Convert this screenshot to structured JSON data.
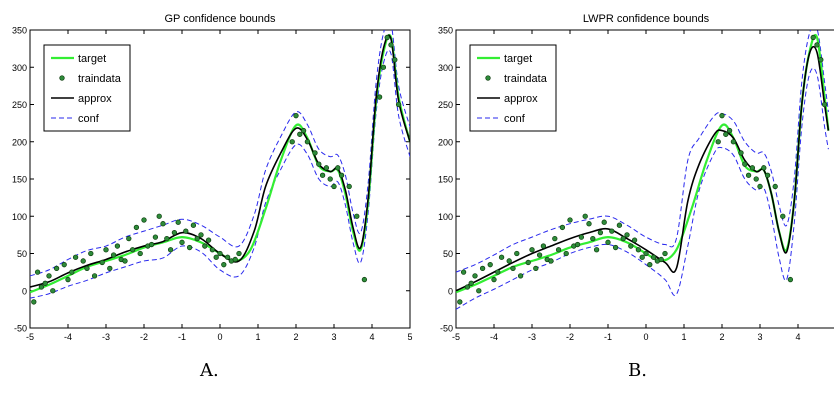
{
  "captions": [
    "A.",
    "B."
  ],
  "colors": {
    "target": "#33ee33",
    "traindata_fill": "#2e8b3a",
    "approx": "#000000",
    "conf": "#2a2aee"
  },
  "chart_data": [
    {
      "type": "line",
      "title": "GP confidence bounds",
      "xlim": [
        -5,
        5
      ],
      "ylim": [
        -50,
        350
      ],
      "xticks": [
        "-5",
        "-4",
        "-3",
        "-2",
        "-1",
        "0",
        "1",
        "2",
        "3",
        "4",
        "5"
      ],
      "yticks": [
        "-50",
        "0",
        "50",
        "100",
        "150",
        "200",
        "250",
        "300",
        "350"
      ],
      "legend": {
        "position": "top-left",
        "entries": [
          "target",
          "traindata",
          "approx",
          "conf"
        ]
      },
      "series": [
        {
          "name": "target",
          "style": "solid-green",
          "x": [
            -5,
            -4.5,
            -4,
            -3.5,
            -3,
            -2.5,
            -2,
            -1.5,
            -1,
            -0.5,
            0,
            0.4,
            0.8,
            1.2,
            1.6,
            2.0,
            2.3,
            2.6,
            2.9,
            3.1,
            3.3,
            3.5,
            3.7,
            3.9,
            4.1,
            4.3,
            4.5,
            4.7,
            5
          ],
          "y": [
            -2,
            8,
            20,
            32,
            40,
            48,
            58,
            65,
            72,
            65,
            50,
            40,
            55,
            110,
            175,
            222,
            205,
            168,
            160,
            162,
            130,
            80,
            55,
            120,
            250,
            320,
            340,
            260,
            200
          ]
        },
        {
          "name": "approx",
          "style": "solid-black",
          "x": [
            -5,
            -4.5,
            -4,
            -3.5,
            -3,
            -2.5,
            -2,
            -1.5,
            -1,
            -0.5,
            0,
            0.5,
            0.9,
            1.2,
            1.6,
            2.0,
            2.3,
            2.6,
            2.9,
            3.1,
            3.3,
            3.5,
            3.7,
            3.9,
            4.1,
            4.3,
            4.5,
            4.7,
            5
          ],
          "y": [
            5,
            12,
            24,
            34,
            42,
            52,
            60,
            66,
            78,
            70,
            50,
            40,
            80,
            140,
            185,
            218,
            203,
            170,
            160,
            164,
            135,
            85,
            58,
            125,
            255,
            325,
            338,
            255,
            200
          ]
        },
        {
          "name": "conf",
          "style": "dashed-blue",
          "x": [
            -5,
            -4.5,
            -4,
            -3.5,
            -3,
            -2.5,
            -2,
            -1.5,
            -1,
            -0.5,
            0,
            0.5,
            0.9,
            1.2,
            1.6,
            2.0,
            2.3,
            2.6,
            2.9,
            3.1,
            3.3,
            3.5,
            3.7,
            3.9,
            4.1,
            4.3,
            4.5,
            4.7,
            5
          ],
          "y": [
            20,
            28,
            42,
            54,
            60,
            72,
            80,
            88,
            96,
            88,
            72,
            60,
            102,
            162,
            207,
            240,
            223,
            190,
            180,
            182,
            155,
            105,
            78,
            145,
            275,
            345,
            358,
            275,
            220
          ]
        },
        {
          "name": "conf",
          "style": "dashed-blue",
          "x": [
            -5,
            -4.5,
            -4,
            -3.5,
            -3,
            -2.5,
            -2,
            -1.5,
            -1,
            -0.5,
            0,
            0.5,
            0.9,
            1.2,
            1.6,
            2.0,
            2.3,
            2.6,
            2.9,
            3.1,
            3.3,
            3.5,
            3.7,
            3.9,
            4.1,
            4.3,
            4.5,
            4.7,
            5
          ],
          "y": [
            -10,
            -4,
            6,
            14,
            24,
            32,
            40,
            44,
            60,
            52,
            28,
            20,
            58,
            118,
            163,
            196,
            183,
            150,
            140,
            146,
            115,
            65,
            38,
            105,
            235,
            305,
            318,
            235,
            180
          ]
        }
      ],
      "scatter": {
        "name": "traindata",
        "x": [
          -4.9,
          -4.8,
          -4.7,
          -4.6,
          -4.5,
          -4.4,
          -4.3,
          -4.1,
          -4.0,
          -3.9,
          -3.8,
          -3.6,
          -3.5,
          -3.4,
          -3.3,
          -3.1,
          -3.0,
          -2.9,
          -2.8,
          -2.7,
          -2.6,
          -2.5,
          -2.4,
          -2.3,
          -2.2,
          -2.1,
          -2.0,
          -1.9,
          -1.8,
          -1.7,
          -1.6,
          -1.5,
          -1.4,
          -1.3,
          -1.2,
          -1.1,
          -1.0,
          -0.9,
          -0.8,
          -0.7,
          -0.6,
          -0.5,
          -0.4,
          -0.3,
          -0.2,
          -0.1,
          0.0,
          0.1,
          0.2,
          0.3,
          0.4,
          0.5,
          1.9,
          2.0,
          2.1,
          2.2,
          2.3,
          2.5,
          2.6,
          2.7,
          2.8,
          2.9,
          3.0,
          3.1,
          3.2,
          3.4,
          3.6,
          3.8,
          4.2,
          4.3,
          4.4,
          4.5,
          4.6,
          4.7
        ],
        "y": [
          -15,
          25,
          5,
          10,
          20,
          0,
          30,
          35,
          15,
          25,
          45,
          40,
          30,
          50,
          20,
          38,
          55,
          30,
          48,
          60,
          42,
          40,
          70,
          55,
          85,
          50,
          95,
          60,
          62,
          72,
          100,
          90,
          70,
          55,
          78,
          92,
          65,
          80,
          58,
          88,
          70,
          75,
          60,
          68,
          55,
          45,
          50,
          35,
          45,
          40,
          42,
          50,
          200,
          235,
          210,
          215,
          200,
          185,
          170,
          155,
          165,
          150,
          140,
          165,
          155,
          140,
          100,
          15,
          260,
          300,
          340,
          330,
          310,
          250
        ]
      }
    },
    {
      "type": "line",
      "title": "LWPR confidence bounds",
      "xlim": [
        -5,
        5
      ],
      "ylim": [
        -50,
        350
      ],
      "xticks": [
        "-5",
        "-4",
        "-3",
        "-2",
        "-1",
        "0",
        "1",
        "2",
        "3",
        "4"
      ],
      "yticks": [
        "-50",
        "0",
        "50",
        "100",
        "150",
        "200",
        "250",
        "300",
        "350"
      ],
      "legend": {
        "position": "top-left",
        "entries": [
          "target",
          "traindata",
          "approx",
          "conf"
        ]
      },
      "series": [
        {
          "name": "target",
          "style": "solid-green",
          "x": [
            -5,
            -4.5,
            -4,
            -3.5,
            -3,
            -2.5,
            -2,
            -1.5,
            -1,
            -0.5,
            0,
            0.4,
            0.8,
            1.2,
            1.6,
            2.0,
            2.3,
            2.6,
            2.9,
            3.1,
            3.3,
            3.5,
            3.7,
            3.9,
            4.1,
            4.3,
            4.5,
            4.7,
            4.8
          ],
          "y": [
            -2,
            8,
            20,
            32,
            40,
            48,
            58,
            65,
            72,
            65,
            50,
            40,
            55,
            110,
            175,
            222,
            205,
            168,
            160,
            162,
            130,
            80,
            55,
            120,
            250,
            320,
            340,
            260,
            215
          ]
        },
        {
          "name": "approx",
          "style": "solid-black",
          "x": [
            -5,
            -4.5,
            -4,
            -3.5,
            -3,
            -2.5,
            -2,
            -1.5,
            -1,
            -0.5,
            0,
            0.5,
            0.8,
            1.1,
            1.4,
            1.8,
            2.0,
            2.3,
            2.6,
            2.9,
            3.1,
            3.3,
            3.5,
            3.7,
            3.9,
            4.1,
            4.3,
            4.5,
            4.7,
            4.8
          ],
          "y": [
            0,
            12,
            25,
            38,
            50,
            60,
            70,
            78,
            83,
            70,
            55,
            38,
            30,
            120,
            170,
            210,
            215,
            205,
            175,
            160,
            162,
            130,
            80,
            52,
            120,
            250,
            318,
            320,
            250,
            215
          ]
        },
        {
          "name": "conf",
          "style": "dashed-blue",
          "x": [
            -5,
            -4.5,
            -4,
            -3.5,
            -3,
            -2.5,
            -2,
            -1.5,
            -1,
            -0.5,
            0,
            0.5,
            0.8,
            1.1,
            1.4,
            1.8,
            2.0,
            2.3,
            2.6,
            2.9,
            3.1,
            3.3,
            3.5,
            3.7,
            3.9,
            4.1,
            4.3,
            4.5,
            4.7,
            4.8
          ],
          "y": [
            25,
            35,
            48,
            62,
            72,
            82,
            90,
            96,
            100,
            88,
            72,
            62,
            70,
            175,
            205,
            235,
            238,
            228,
            200,
            185,
            185,
            160,
            115,
            88,
            150,
            280,
            345,
            352,
            280,
            240
          ]
        },
        {
          "name": "conf",
          "style": "dashed-blue",
          "x": [
            -5,
            -4.5,
            -4,
            -3.5,
            -3,
            -2.5,
            -2,
            -1.5,
            -1,
            -0.5,
            0,
            0.5,
            0.8,
            1.1,
            1.4,
            1.8,
            2.0,
            2.3,
            2.6,
            2.9,
            3.1,
            3.3,
            3.5,
            3.7,
            3.9,
            4.1,
            4.3,
            4.5,
            4.7,
            4.8
          ],
          "y": [
            -25,
            -10,
            2,
            15,
            28,
            38,
            50,
            58,
            62,
            52,
            35,
            15,
            -5,
            60,
            135,
            185,
            192,
            182,
            150,
            135,
            138,
            100,
            45,
            15,
            90,
            220,
            290,
            290,
            220,
            190
          ]
        }
      ],
      "scatter": {
        "name": "traindata",
        "x": [
          -4.9,
          -4.8,
          -4.7,
          -4.6,
          -4.5,
          -4.4,
          -4.3,
          -4.1,
          -4.0,
          -3.9,
          -3.8,
          -3.6,
          -3.5,
          -3.4,
          -3.3,
          -3.1,
          -3.0,
          -2.9,
          -2.8,
          -2.7,
          -2.6,
          -2.5,
          -2.4,
          -2.3,
          -2.2,
          -2.1,
          -2.0,
          -1.9,
          -1.8,
          -1.7,
          -1.6,
          -1.5,
          -1.4,
          -1.3,
          -1.2,
          -1.1,
          -1.0,
          -0.9,
          -0.8,
          -0.7,
          -0.6,
          -0.5,
          -0.4,
          -0.3,
          -0.2,
          -0.1,
          0.0,
          0.1,
          0.2,
          0.3,
          0.4,
          0.5,
          1.9,
          2.0,
          2.1,
          2.2,
          2.3,
          2.5,
          2.6,
          2.7,
          2.8,
          2.9,
          3.0,
          3.1,
          3.2,
          3.4,
          3.6,
          3.8,
          4.4,
          4.5,
          4.6,
          4.7
        ],
        "y": [
          -15,
          25,
          5,
          10,
          20,
          0,
          30,
          35,
          15,
          25,
          45,
          40,
          30,
          50,
          20,
          38,
          55,
          30,
          48,
          60,
          42,
          40,
          70,
          55,
          85,
          50,
          95,
          60,
          62,
          72,
          100,
          90,
          70,
          55,
          78,
          92,
          65,
          80,
          58,
          88,
          70,
          75,
          60,
          68,
          55,
          45,
          50,
          35,
          45,
          40,
          42,
          50,
          200,
          235,
          210,
          215,
          200,
          185,
          170,
          155,
          165,
          150,
          140,
          165,
          155,
          140,
          100,
          15,
          340,
          330,
          310,
          250
        ]
      }
    }
  ]
}
